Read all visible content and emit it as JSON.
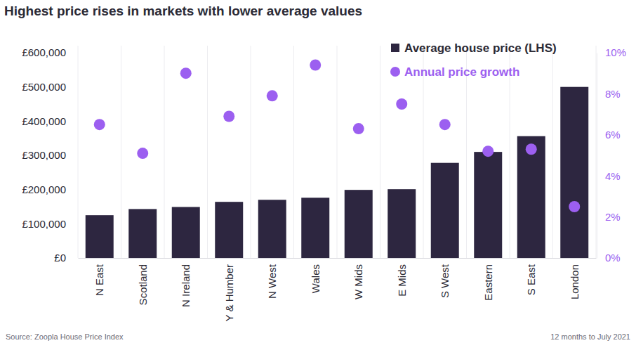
{
  "chart_data": {
    "type": "bar",
    "title": "Highest price rises in markets with lower average values",
    "source": "Source: Zoopla House Price Index",
    "note": "12 months to July 2021",
    "categories": [
      "N East",
      "Scotland",
      "N Ireland",
      "Y & Humber",
      "N West",
      "Wales",
      "W Mids",
      "E Mids",
      "S West",
      "Eastern",
      "S East",
      "London"
    ],
    "series": [
      {
        "name": "Average house price (LHS)",
        "type": "bar",
        "color": "#2d2640",
        "values": [
          125000,
          143000,
          149000,
          164000,
          170000,
          176000,
          199000,
          201000,
          278000,
          310000,
          356000,
          500000
        ]
      },
      {
        "name": "Annual price growth",
        "type": "scatter",
        "axis": "y2",
        "marker": "circle",
        "color": "#9c5ff0",
        "values": [
          6.5,
          5.1,
          9.0,
          6.9,
          7.9,
          9.4,
          6.3,
          7.5,
          6.5,
          5.2,
          5.3,
          2.5
        ]
      }
    ],
    "ylim": [
      0,
      600000
    ],
    "yticks": [
      {
        "value": 0,
        "label": "£0"
      },
      {
        "value": 100000,
        "label": "£100,000"
      },
      {
        "value": 200000,
        "label": "£200,000"
      },
      {
        "value": 300000,
        "label": "£300,000"
      },
      {
        "value": 400000,
        "label": "£400,000"
      },
      {
        "value": 500000,
        "label": "£500,000"
      },
      {
        "value": 600000,
        "label": "£600,000"
      }
    ],
    "y2lim": [
      0,
      10
    ],
    "y2ticks": [
      {
        "value": 0,
        "label": "0%"
      },
      {
        "value": 2,
        "label": "2%"
      },
      {
        "value": 4,
        "label": "4%"
      },
      {
        "value": 6,
        "label": "6%"
      },
      {
        "value": 8,
        "label": "8%"
      },
      {
        "value": 10,
        "label": "10%"
      }
    ],
    "grid": true,
    "legend": "top-right"
  }
}
